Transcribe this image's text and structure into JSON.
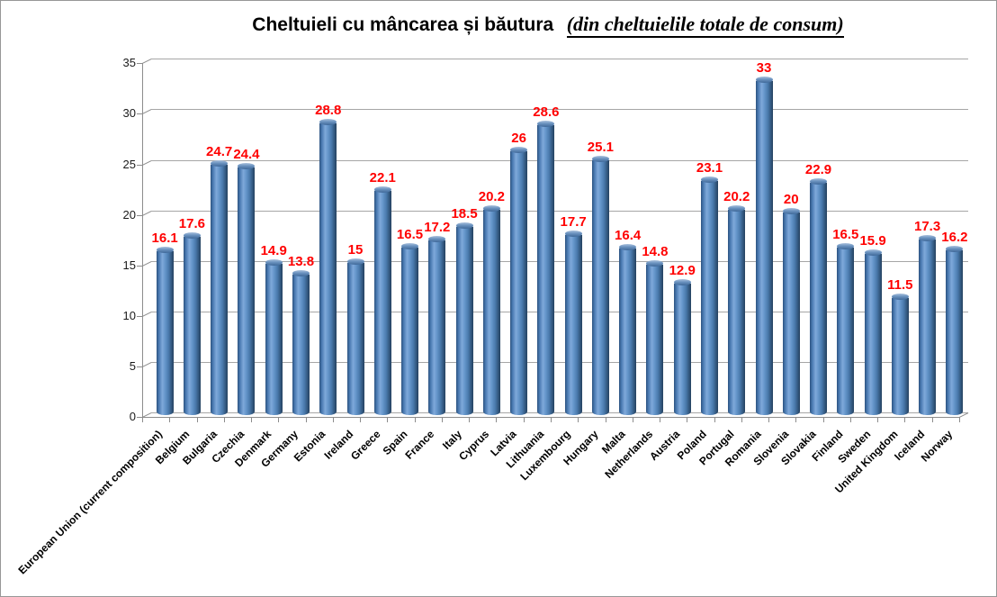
{
  "title": {
    "main": "Cheltuieli cu mâncarea și băutura",
    "annotation": "(din cheltuielile totale de consum)"
  },
  "chart_data": {
    "type": "bar",
    "style": "3d-cylinder",
    "title": "Cheltuieli cu mâncarea și băutura (din cheltuielile totale de consum)",
    "xlabel": "",
    "ylabel": "",
    "ylim": [
      0,
      35
    ],
    "yticks": [
      0,
      5,
      10,
      15,
      20,
      25,
      30,
      35
    ],
    "grid": true,
    "legend": false,
    "categories": [
      "European Union (current composition)",
      "Belgium",
      "Bulgaria",
      "Czechia",
      "Denmark",
      "Germany",
      "Estonia",
      "Ireland",
      "Greece",
      "Spain",
      "France",
      "Italy",
      "Cyprus",
      "Latvia",
      "Lithuania",
      "Luxembourg",
      "Hungary",
      "Malta",
      "Netherlands",
      "Austria",
      "Poland",
      "Portugal",
      "Romania",
      "Slovenia",
      "Slovakia",
      "Finland",
      "Sweden",
      "United Kingdom",
      "Iceland",
      "Norway"
    ],
    "values": [
      16.1,
      17.6,
      24.7,
      24.4,
      14.9,
      13.8,
      28.8,
      15,
      22.1,
      16.5,
      17.2,
      18.5,
      20.2,
      26,
      28.6,
      17.7,
      25.1,
      16.4,
      14.8,
      12.9,
      23.1,
      20.2,
      33,
      20,
      22.9,
      16.5,
      15.9,
      11.5,
      17.3,
      16.2
    ],
    "colors": {
      "bar": "#4f81bd",
      "value_label": "#ff0000",
      "gridline": "#a6a6a6",
      "axis": "#8c8c8c",
      "tick_label": "#1a1a1a",
      "background": "#ffffff"
    }
  }
}
